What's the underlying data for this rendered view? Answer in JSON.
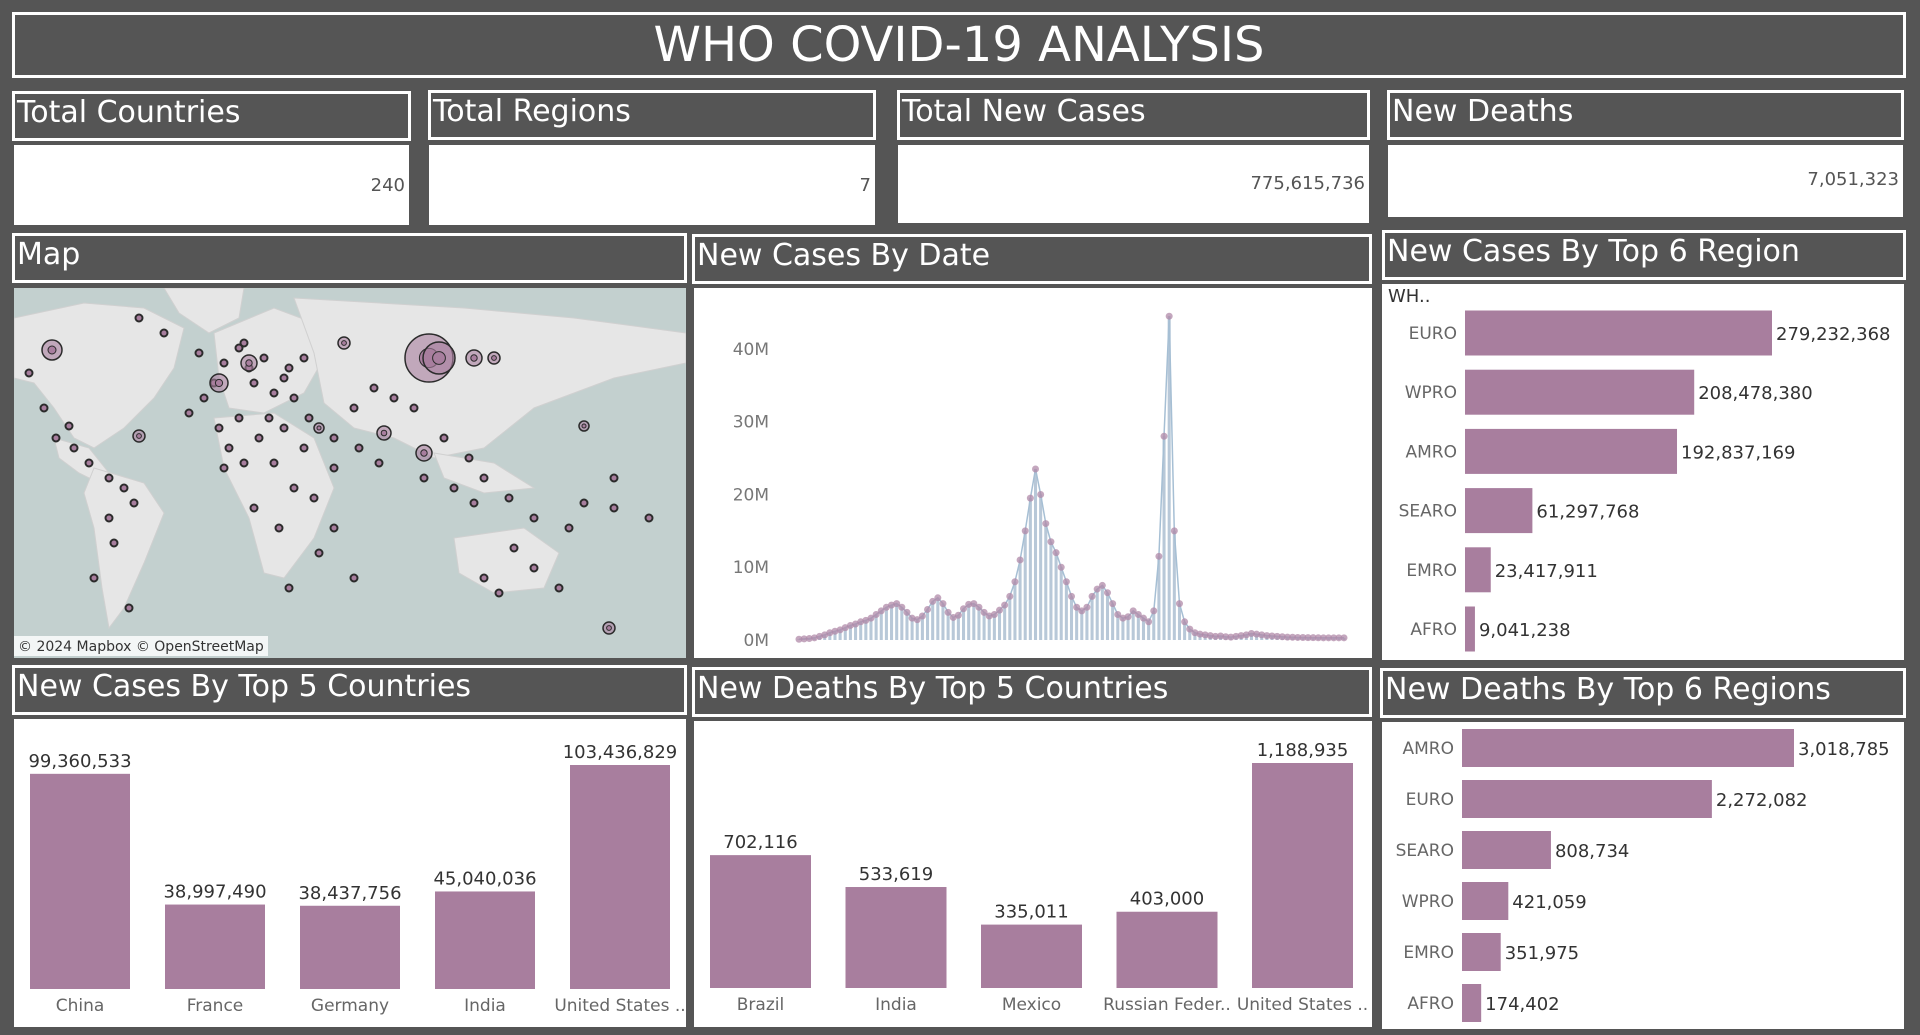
{
  "title": "WHO COVID-19 ANALYSIS",
  "kpis": [
    {
      "label": "Total Countries",
      "value": "240"
    },
    {
      "label": "Total Regions",
      "value": "7"
    },
    {
      "label": "Total New Cases",
      "value": "775,615,736"
    },
    {
      "label": "New Deaths",
      "value": "7,051,323"
    }
  ],
  "map": {
    "title": "Map",
    "credit": "© 2024 Mapbox © OpenStreetMap",
    "colors": {
      "land": "#e6e6e6",
      "water": "#c3d0cf",
      "marker": "#a87e9e",
      "marker_outline": "#2b2b2b"
    }
  },
  "chart_data": [
    {
      "type": "area",
      "title": "New Cases By Date",
      "yticks": [
        "0M",
        "10M",
        "20M",
        "30M",
        "40M"
      ],
      "ylim": [
        0,
        47000000
      ],
      "series": [
        {
          "values": [
            100000,
            150000,
            200000,
            300000,
            500000,
            700000,
            1000000,
            1200000,
            1400000,
            1700000,
            2000000,
            2200000,
            2500000,
            2700000,
            3000000,
            3500000,
            4000000,
            4500000,
            4800000,
            5000000,
            4500000,
            3800000,
            3000000,
            2800000,
            3300000,
            4200000,
            5300000,
            5800000,
            5000000,
            3800000,
            3100000,
            3400000,
            4300000,
            4900000,
            5000000,
            4500000,
            3800000,
            3300000,
            3500000,
            4100000,
            4800000,
            6000000,
            8000000,
            11000000,
            15000000,
            19500000,
            23500000,
            20000000,
            16000000,
            13500000,
            12000000,
            10000000,
            8000000,
            6000000,
            4500000,
            4000000,
            4500000,
            6000000,
            7000000,
            7500000,
            6500000,
            5000000,
            3500000,
            3000000,
            3200000,
            4000000,
            3500000,
            3000000,
            2500000,
            4000000,
            11500000,
            28000000,
            44500000,
            15000000,
            5000000,
            2500000,
            1500000,
            1000000,
            800000,
            700000,
            600000,
            500000,
            550000,
            450000,
            400000,
            500000,
            600000,
            700000,
            900000,
            800000,
            700000,
            600000,
            550000,
            500000,
            450000,
            400000,
            380000,
            350000,
            340000,
            330000,
            320000,
            310000,
            300000,
            300000,
            300000,
            300000,
            300000
          ]
        }
      ],
      "colors": {
        "bar": "#b8c8d8",
        "line": "#a6bfd4",
        "marker": "#b08aa8"
      }
    },
    {
      "type": "bar",
      "orientation": "horizontal",
      "title": "New Cases By Top 6 Region",
      "header_label": "WH..",
      "categories": [
        "EURO",
        "WPRO",
        "AMRO",
        "SEARO",
        "EMRO",
        "AFRO"
      ],
      "values": [
        279232368,
        208478380,
        192837169,
        61297768,
        23417911,
        9041238
      ],
      "labels": [
        "279,232,368",
        "208,478,380",
        "192,837,169",
        "61,297,768",
        "23,417,911",
        "9,041,238"
      ],
      "color": "#a87e9e"
    },
    {
      "type": "bar",
      "title": "New Cases By Top 5 Countries",
      "categories": [
        "China",
        "France",
        "Germany",
        "India",
        "United States .."
      ],
      "values": [
        99360533,
        38997490,
        38437756,
        45040036,
        103436829
      ],
      "labels": [
        "99,360,533",
        "38,997,490",
        "38,437,756",
        "45,040,036",
        "103,436,829"
      ],
      "color": "#a87e9e"
    },
    {
      "type": "bar",
      "title": "New Deaths By Top 5 Countries",
      "categories": [
        "Brazil",
        "India",
        "Mexico",
        "Russian Feder..",
        "United States .."
      ],
      "values": [
        702116,
        533619,
        335011,
        403000,
        1188935
      ],
      "labels": [
        "702,116",
        "533,619",
        "335,011",
        "403,000",
        "1,188,935"
      ],
      "color": "#a87e9e"
    },
    {
      "type": "bar",
      "orientation": "horizontal",
      "title": "New Deaths By Top 6 Regions",
      "categories": [
        "AMRO",
        "EURO",
        "SEARO",
        "WPRO",
        "EMRO",
        "AFRO"
      ],
      "values": [
        3018785,
        2272082,
        808734,
        421059,
        351975,
        174402
      ],
      "labels": [
        "3,018,785",
        "2,272,082",
        "808,734",
        "421,059",
        "351,975",
        "174,402"
      ],
      "color": "#a87e9e"
    }
  ]
}
